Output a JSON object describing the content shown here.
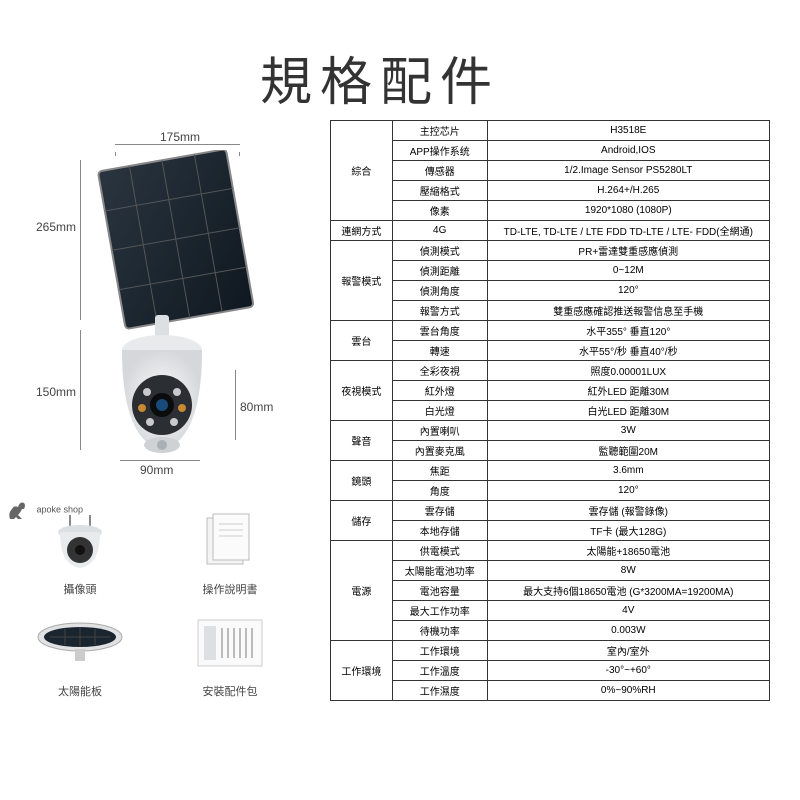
{
  "title": "規格配件",
  "dimensions": {
    "top_width": "175mm",
    "left_height": "265mm",
    "body_height": "150mm",
    "body_right": "80mm",
    "body_bottom": "90mm"
  },
  "logo": "apoke shop",
  "accessories": [
    {
      "label": "攝像頭"
    },
    {
      "label": "操作說明書"
    },
    {
      "label": "太陽能板"
    },
    {
      "label": "安裝配件包"
    }
  ],
  "spec_categories": [
    {
      "name": "綜合",
      "rows": [
        {
          "label": "主控芯片",
          "value": "H3518E"
        },
        {
          "label": "APP操作系统",
          "value": "Android,IOS"
        },
        {
          "label": "傳感器",
          "value": "1/2.Image Sensor PS5280LT"
        },
        {
          "label": "壓縮格式",
          "value": "H.264+/H.265"
        },
        {
          "label": "像素",
          "value": "1920*1080 (1080P)"
        }
      ]
    },
    {
      "name": "連網方式",
      "rows": [
        {
          "label": "4G",
          "value": "TD-LTE, TD-LTE / LTE FDD TD-LTE / LTE- FDD(全網通)"
        }
      ]
    },
    {
      "name": "報警模式",
      "rows": [
        {
          "label": "偵測模式",
          "value": "PR+雷達雙重感應偵測"
        },
        {
          "label": "偵測距離",
          "value": "0~12M"
        },
        {
          "label": "偵測角度",
          "value": "120°"
        },
        {
          "label": "報警方式",
          "value": "雙重感應確認推送報警信息至手機"
        }
      ]
    },
    {
      "name": "雲台",
      "rows": [
        {
          "label": "雲台角度",
          "value": "水平355°   垂直120°"
        },
        {
          "label": "轉速",
          "value": "水平55°/秒    垂直40°/秒"
        }
      ]
    },
    {
      "name": "夜視模式",
      "rows": [
        {
          "label": "全彩夜視",
          "value": "照度0.00001LUX"
        },
        {
          "label": "紅外燈",
          "value": "紅外LED 距離30M"
        },
        {
          "label": "白光燈",
          "value": "白光LED 距離30M"
        }
      ]
    },
    {
      "name": "聲音",
      "rows": [
        {
          "label": "內置喇叭",
          "value": "3W"
        },
        {
          "label": "內置麥克風",
          "value": "監聽範圍20M"
        }
      ]
    },
    {
      "name": "鏡頭",
      "rows": [
        {
          "label": "焦距",
          "value": "3.6mm"
        },
        {
          "label": "角度",
          "value": "120°"
        }
      ]
    },
    {
      "name": "儲存",
      "rows": [
        {
          "label": "雲存儲",
          "value": "雲存儲 (報警錄像)"
        },
        {
          "label": "本地存儲",
          "value": "TF卡 (最大128G)"
        }
      ]
    },
    {
      "name": "電源",
      "rows": [
        {
          "label": "供電模式",
          "value": "太陽能+18650電池"
        },
        {
          "label": "太陽能電池功率",
          "value": "8W"
        },
        {
          "label": "電池容量",
          "value": "最大支持6個18650電池 (G*3200MA=19200MA)"
        },
        {
          "label": "最大工作功率",
          "value": "4V"
        },
        {
          "label": "待機功率",
          "value": "0.003W"
        }
      ]
    },
    {
      "name": "工作環境",
      "rows": [
        {
          "label": "工作環境",
          "value": "室內/室外"
        },
        {
          "label": "工作溫度",
          "value": "-30°~+60°"
        },
        {
          "label": "工作濕度",
          "value": "0%~90%RH"
        }
      ]
    }
  ]
}
